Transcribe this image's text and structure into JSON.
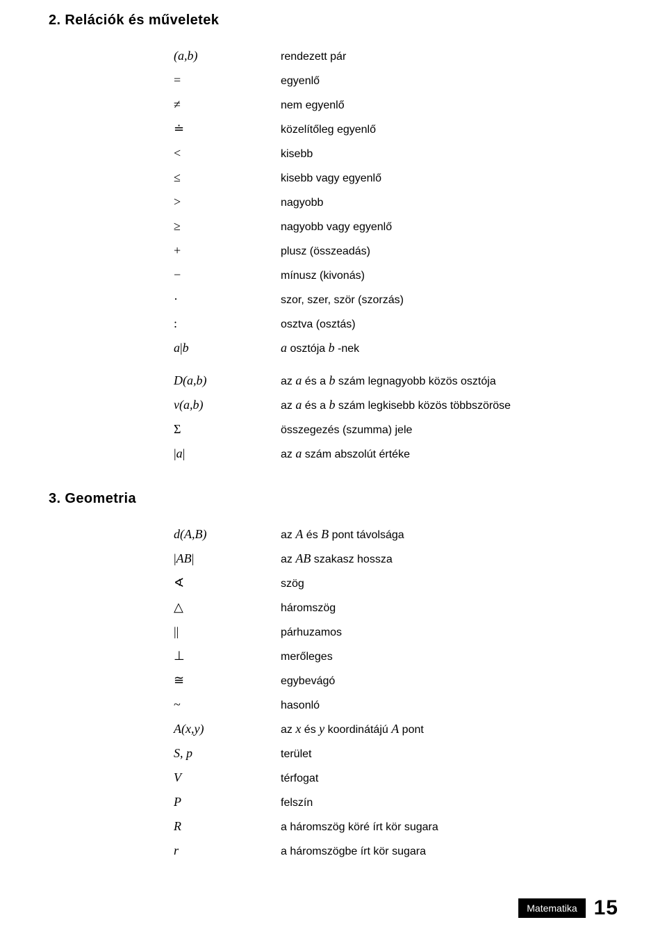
{
  "sections": {
    "relations": {
      "heading": "2. Relációk és műveletek",
      "rows": [
        {
          "sym_html": "(<i>a</i>,<i>b</i>)",
          "desc_html": "rendezett pár"
        },
        {
          "sym_html": "<span class='up'>=</span>",
          "desc_html": "egyenlő"
        },
        {
          "sym_html": "<span class='up'>≠</span>",
          "desc_html": "nem egyenlő"
        },
        {
          "sym_html": "<span class='up'>≐</span>",
          "desc_html": "közelítőleg egyenlő"
        },
        {
          "sym_html": "<span class='up'>&lt;</span>",
          "desc_html": "kisebb"
        },
        {
          "sym_html": "<span class='up'>≤</span>",
          "desc_html": "kisebb vagy egyenlő"
        },
        {
          "sym_html": "<span class='up'>&gt;</span>",
          "desc_html": "nagyobb"
        },
        {
          "sym_html": "<span class='up'>≥</span>",
          "desc_html": "nagyobb vagy egyenlő"
        },
        {
          "sym_html": "<span class='up'>+</span>",
          "desc_html": "plusz (összeadás)"
        },
        {
          "sym_html": "<span class='up'>−</span>",
          "desc_html": "mínusz (kivonás)"
        },
        {
          "sym_html": "<span class='up'>·</span>",
          "desc_html": "szor, szer, ször (szorzás)"
        },
        {
          "sym_html": "<span class='up'>:</span>",
          "desc_html": "osztva (osztás)"
        },
        {
          "sym_html": "<i>a</i><span class='up'>|</span><i>b</i>",
          "desc_html": "<span class='it'>a</span> osztója <span class='it'>b</span> -nek"
        }
      ],
      "rows2": [
        {
          "sym_html": "<i>D</i>(<i>a</i>,<i>b</i>)",
          "desc_html": "az <span class='it'>a</span> és a <span class='it'>b</span> szám legnagyobb közös osztója"
        },
        {
          "sym_html": "<i>v</i>(<i>a</i>,<i>b</i>)",
          "desc_html": "az <span class='it'>a</span> és a <span class='it'>b</span> szám legkisebb közös többszöröse"
        },
        {
          "sym_html": "<span class='up'>Σ</span>",
          "desc_html": "összegezés (szumma) jele"
        },
        {
          "sym_html": "<span class='up'>|</span><i>a</i><span class='up'>|</span>",
          "desc_html": "az <span class='it'>a</span> szám abszolút értéke"
        }
      ]
    },
    "geometry": {
      "heading": "3. Geometria",
      "rows": [
        {
          "sym_html": "<i>d</i>(<i>A</i>,<i>B</i>)",
          "desc_html": "az <span class='it'>A</span> és <span class='it'>B</span> pont távolsága"
        },
        {
          "sym_html": "<span class='up'>|</span><i>AB</i><span class='up'>|</span>",
          "desc_html": "az <span class='it'>AB</span> szakasz hossza"
        },
        {
          "sym_html": "<span class='up'>∢</span>",
          "desc_html": "szög"
        },
        {
          "sym_html": "<span class='up'>△</span>",
          "desc_html": "háromszög"
        },
        {
          "sym_html": "<span class='up'>||</span>",
          "desc_html": "párhuzamos"
        },
        {
          "sym_html": "<span class='up'>⊥</span>",
          "desc_html": "merőleges"
        },
        {
          "sym_html": "<span class='up'>≅</span>",
          "desc_html": "egybevágó"
        },
        {
          "sym_html": "<span class='up'>~</span>",
          "desc_html": "hasonló"
        },
        {
          "sym_html": "<i>A</i>(<i>x</i>,<i>y</i>)",
          "desc_html": "az <span class='it'>x</span> <span>és</span> <span class='it'>y</span> koordinátájú <span class='it'>A</span> pont"
        },
        {
          "sym_html": "<i>S, p</i>",
          "desc_html": "terület"
        },
        {
          "sym_html": "<i>V</i>",
          "desc_html": "térfogat"
        },
        {
          "sym_html": "<i>P</i>",
          "desc_html": "felszín"
        },
        {
          "sym_html": "<i>R</i>",
          "desc_html": "a háromszög köré írt kör sugara"
        },
        {
          "sym_html": "<i>r</i>",
          "desc_html": "a háromszögbe írt kör sugara"
        }
      ]
    }
  },
  "footer": {
    "label": "Matematika",
    "page": "15"
  }
}
